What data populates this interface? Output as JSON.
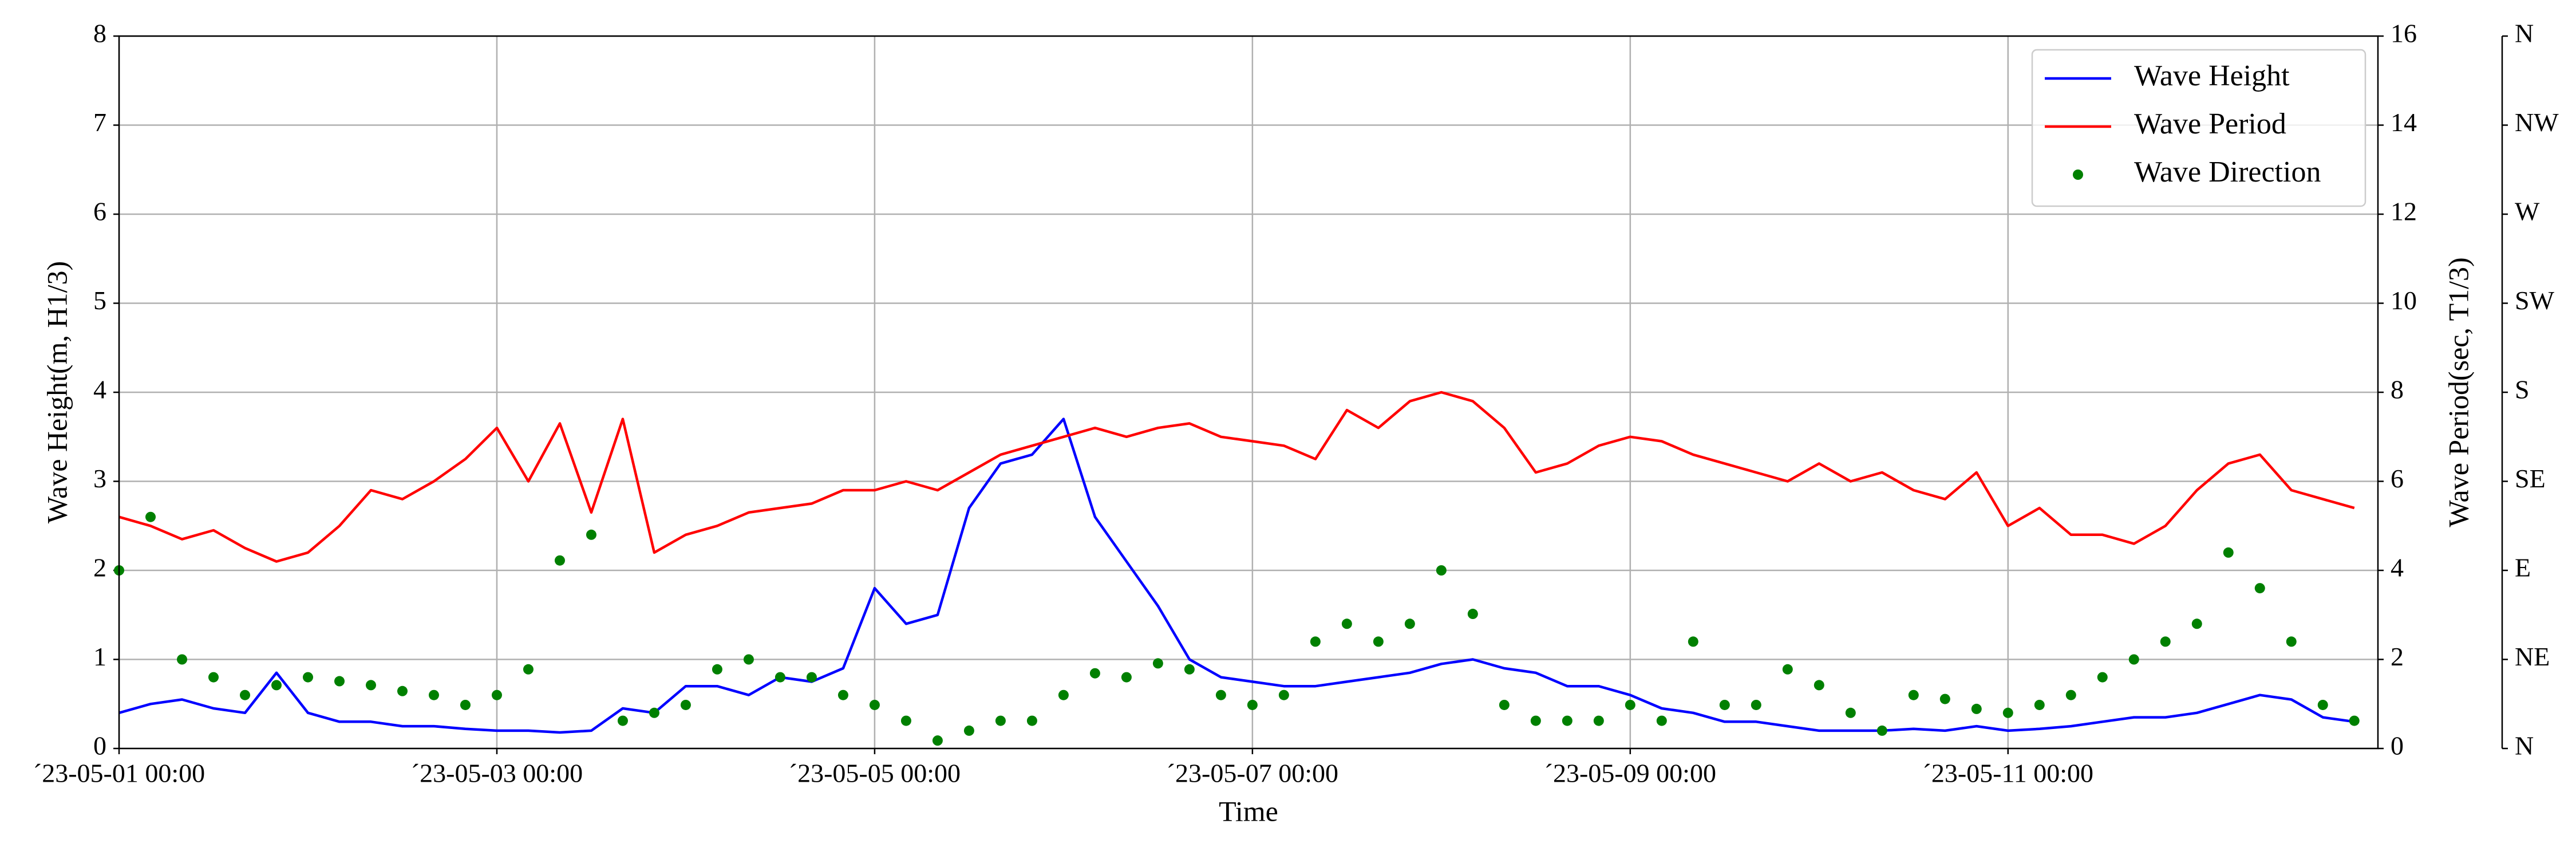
{
  "chart_data": {
    "type": "line",
    "xlabel": "Time",
    "ylabel": "Wave Height(m, H1/3)",
    "y2label": "Wave Period(sec, T1/3)",
    "grid": true,
    "legend": "upper right",
    "x": [
      "2023-05-01 00:00",
      "2023-05-01 04:00",
      "2023-05-01 08:00",
      "2023-05-01 12:00",
      "2023-05-01 16:00",
      "2023-05-01 20:00",
      "2023-05-02 00:00",
      "2023-05-02 04:00",
      "2023-05-02 08:00",
      "2023-05-02 12:00",
      "2023-05-02 16:00",
      "2023-05-02 20:00",
      "2023-05-03 00:00",
      "2023-05-03 04:00",
      "2023-05-03 08:00",
      "2023-05-03 12:00",
      "2023-05-03 16:00",
      "2023-05-03 20:00",
      "2023-05-04 00:00",
      "2023-05-04 04:00",
      "2023-05-04 08:00",
      "2023-05-04 12:00",
      "2023-05-04 16:00",
      "2023-05-04 20:00",
      "2023-05-05 00:00",
      "2023-05-05 04:00",
      "2023-05-05 08:00",
      "2023-05-05 12:00",
      "2023-05-05 16:00",
      "2023-05-05 20:00",
      "2023-05-06 00:00",
      "2023-05-06 04:00",
      "2023-05-06 08:00",
      "2023-05-06 12:00",
      "2023-05-06 16:00",
      "2023-05-06 20:00",
      "2023-05-07 00:00",
      "2023-05-07 04:00",
      "2023-05-07 08:00",
      "2023-05-07 12:00",
      "2023-05-07 16:00",
      "2023-05-07 20:00",
      "2023-05-08 00:00",
      "2023-05-08 04:00",
      "2023-05-08 08:00",
      "2023-05-08 12:00",
      "2023-05-08 16:00",
      "2023-05-08 20:00",
      "2023-05-09 00:00",
      "2023-05-09 04:00",
      "2023-05-09 08:00",
      "2023-05-09 12:00",
      "2023-05-09 16:00",
      "2023-05-09 20:00",
      "2023-05-10 00:00",
      "2023-05-10 04:00",
      "2023-05-10 08:00",
      "2023-05-10 12:00",
      "2023-05-10 16:00",
      "2023-05-10 20:00",
      "2023-05-11 00:00",
      "2023-05-11 04:00",
      "2023-05-11 08:00",
      "2023-05-11 12:00",
      "2023-05-11 16:00",
      "2023-05-11 20:00",
      "2023-05-12 00:00",
      "2023-05-12 04:00",
      "2023-05-12 08:00",
      "2023-05-12 12:00",
      "2023-05-12 16:00",
      "2023-05-12 20:00"
    ],
    "xlim": [
      "2023-05-01 00:00",
      "2023-05-12 23:00"
    ],
    "xticks": [
      {
        "value": "2023-05-01 00:00",
        "label": "´23-05-01 00:00"
      },
      {
        "value": "2023-05-03 00:00",
        "label": "´23-05-03 00:00"
      },
      {
        "value": "2023-05-05 00:00",
        "label": "´23-05-05 00:00"
      },
      {
        "value": "2023-05-07 00:00",
        "label": "´23-05-07 00:00"
      },
      {
        "value": "2023-05-09 00:00",
        "label": "´23-05-09 00:00"
      },
      {
        "value": "2023-05-11 00:00",
        "label": "´23-05-11 00:00"
      }
    ],
    "ylim": [
      0,
      8
    ],
    "yticks": [
      0,
      1,
      2,
      3,
      4,
      5,
      6,
      7,
      8
    ],
    "y2lim": [
      0,
      16
    ],
    "y2ticks": [
      0,
      2,
      4,
      6,
      8,
      10,
      12,
      14,
      16
    ],
    "y3lim": [
      0,
      360
    ],
    "y3ticks": [
      {
        "value": 0,
        "label": "N"
      },
      {
        "value": 45,
        "label": "NE"
      },
      {
        "value": 90,
        "label": "E"
      },
      {
        "value": 135,
        "label": "SE"
      },
      {
        "value": 180,
        "label": "S"
      },
      {
        "value": 225,
        "label": "SW"
      },
      {
        "value": 270,
        "label": "W"
      },
      {
        "value": 315,
        "label": "NW"
      },
      {
        "value": 360,
        "label": "N"
      }
    ],
    "series": [
      {
        "name": "Wave Height",
        "color": "#0000ff",
        "kind": "line",
        "axis": "y",
        "values": [
          0.4,
          0.5,
          0.55,
          0.45,
          0.4,
          0.85,
          0.4,
          0.3,
          0.3,
          0.25,
          0.25,
          0.22,
          0.2,
          0.2,
          0.18,
          0.2,
          0.45,
          0.4,
          0.7,
          0.7,
          0.6,
          0.8,
          0.75,
          0.9,
          1.8,
          1.4,
          1.5,
          2.7,
          3.2,
          3.3,
          3.7,
          2.6,
          2.1,
          1.6,
          1.0,
          0.8,
          0.75,
          0.7,
          0.7,
          0.75,
          0.8,
          0.85,
          0.95,
          1.0,
          0.9,
          0.85,
          0.7,
          0.7,
          0.6,
          0.45,
          0.4,
          0.3,
          0.3,
          0.25,
          0.2,
          0.2,
          0.2,
          0.22,
          0.2,
          0.25,
          0.2,
          0.22,
          0.25,
          0.3,
          0.35,
          0.35,
          0.4,
          0.5,
          0.6,
          0.55,
          0.35,
          0.3
        ]
      },
      {
        "name": "Wave Period",
        "color": "#ff0000",
        "kind": "line",
        "axis": "y2",
        "values": [
          5.2,
          5.0,
          4.7,
          4.9,
          4.5,
          4.2,
          4.4,
          5.0,
          5.8,
          5.6,
          6.0,
          6.5,
          7.2,
          6.0,
          7.3,
          5.3,
          7.4,
          4.4,
          4.8,
          5.0,
          5.3,
          5.4,
          5.5,
          5.8,
          5.8,
          6.0,
          5.8,
          6.2,
          6.6,
          6.8,
          7.0,
          7.2,
          7.0,
          7.2,
          7.3,
          7.0,
          6.9,
          6.8,
          6.5,
          7.6,
          7.2,
          7.8,
          8.0,
          7.8,
          7.2,
          6.2,
          6.4,
          6.8,
          7.0,
          6.9,
          6.6,
          6.4,
          6.2,
          6.0,
          6.4,
          6.0,
          6.2,
          5.8,
          5.6,
          6.2,
          5.0,
          5.4,
          4.8,
          4.8,
          4.6,
          5.0,
          5.8,
          6.4,
          6.6,
          5.8,
          5.6,
          5.4
        ]
      },
      {
        "name": "Wave Direction",
        "color": "#008000",
        "kind": "scatter",
        "axis": "y3",
        "values": [
          90,
          117,
          45,
          36,
          27,
          32,
          36,
          34,
          32,
          29,
          27,
          22,
          27,
          40,
          95,
          108,
          14,
          18,
          22,
          40,
          45,
          36,
          36,
          27,
          22,
          14,
          4,
          9,
          14,
          14,
          27,
          38,
          36,
          43,
          40,
          27,
          22,
          27,
          54,
          63,
          54,
          63,
          90,
          68,
          22,
          14,
          14,
          14,
          22,
          14,
          54,
          22,
          22,
          40,
          32,
          18,
          9,
          27,
          25,
          20,
          18,
          22,
          27,
          36,
          45,
          54,
          63,
          99,
          81,
          54,
          22,
          14
        ]
      }
    ]
  }
}
